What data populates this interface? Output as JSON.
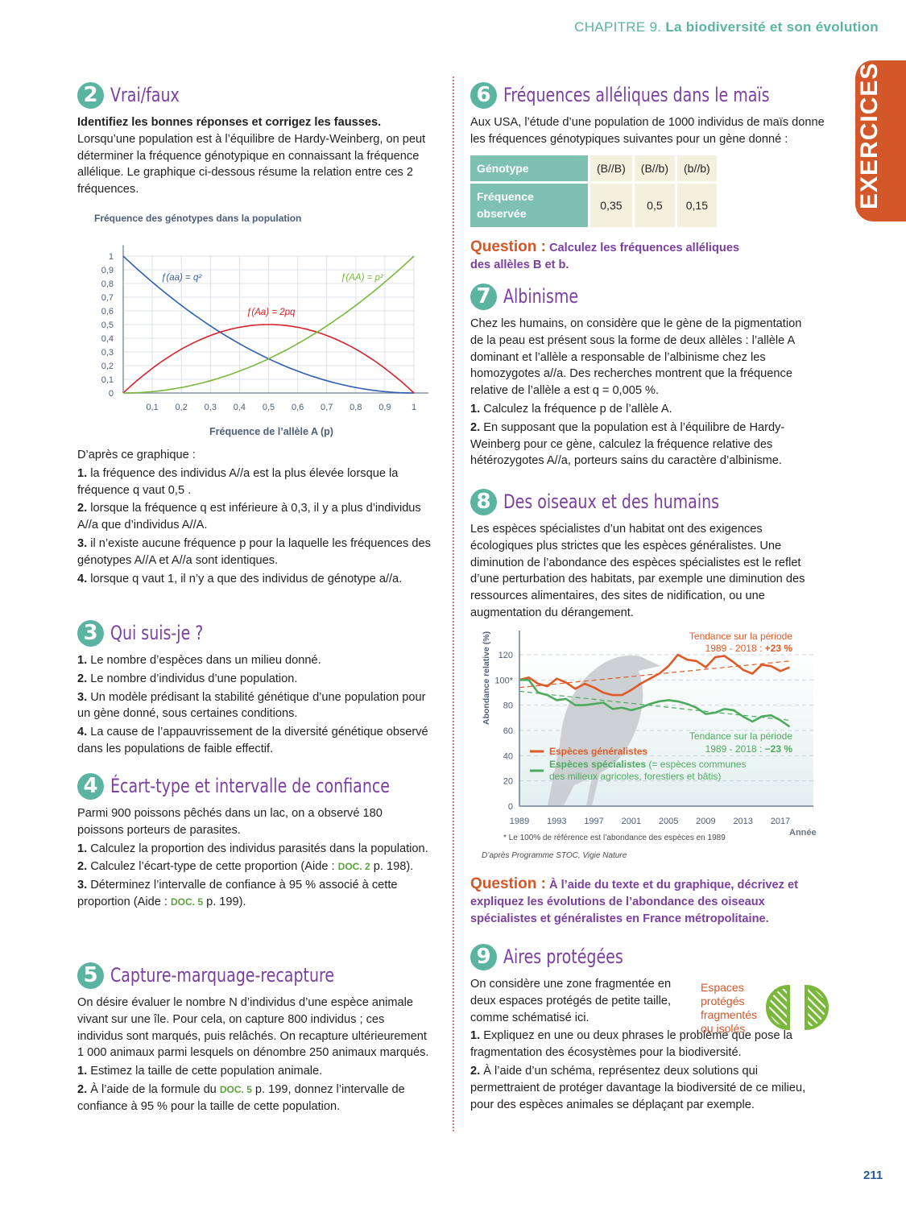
{
  "header": {
    "chapter": "CHAPITRE 9.",
    "title": "La biodiversité et son évolution"
  },
  "tab": "EXERCICES",
  "page_number": "211",
  "ex2": {
    "num": "2",
    "title": "Vrai/faux",
    "intro": "Identifiez les bonnes réponses et corrigez les fausses.",
    "text": "Lorsqu’une population est à l’équilibre de Hardy-Weinberg, on peut déterminer la fréquence génotypique en connaissant la fréquence allélique. Le graphique ci-dessous résume la relation entre ces 2 fréquences.",
    "after": "D’après ce graphique :",
    "items": [
      {
        "n": "1.",
        "t": "la fréquence des individus A//a est la plus élevée lorsque la fréquence q vaut 0,5 ."
      },
      {
        "n": "2.",
        "t": "lorsque la fréquence q est inférieure à 0,3, il y a plus d’individus A//a que d’individus A//A."
      },
      {
        "n": "3.",
        "t": "il n’existe aucune fréquence p pour la laquelle les fréquences des génotypes A//A et A//a sont identiques."
      },
      {
        "n": "4.",
        "t": "lorsque q vaut 1, il n’y a que des individus de génotype a//a."
      }
    ]
  },
  "chart_data": [
    {
      "type": "line",
      "ylabel": "Fréquence des génotypes dans la population",
      "xlabel": "Fréquence de l’allèle A (p)",
      "xlim": [
        0,
        1
      ],
      "ylim": [
        0,
        1
      ],
      "grid": true,
      "x_ticks": [
        "0,1",
        "0,2",
        "0,3",
        "0,4",
        "0,5",
        "0,6",
        "0,7",
        "0,8",
        "0,9",
        "1"
      ],
      "y_ticks": [
        "0",
        "0,1",
        "0,2",
        "0,3",
        "0,4",
        "0,5",
        "0,6",
        "0,7",
        "0,8",
        "0,9",
        "1"
      ],
      "series": [
        {
          "name": "ƒ(aa) = q²",
          "formula": "(1-p)^2",
          "color": "#2f5fb3"
        },
        {
          "name": "ƒ(Aa) = 2pq",
          "formula": "2p(1-p)",
          "color": "#d8232a"
        },
        {
          "name": "ƒ(AA) = p²",
          "formula": "p^2",
          "color": "#7ab83c"
        }
      ]
    },
    {
      "type": "line",
      "ylabel": "Abondance relative (%)",
      "xlabel": "Année",
      "xlim": [
        1989,
        2018
      ],
      "ylim": [
        0,
        130
      ],
      "x_ticks": [
        "1989",
        "1993",
        "1997",
        "2001",
        "2005",
        "2009",
        "2013",
        "2017"
      ],
      "y_ticks": [
        "0",
        "20",
        "40",
        "60",
        "80",
        "100*",
        "120"
      ],
      "x": [
        1989,
        1990,
        1991,
        1992,
        1993,
        1994,
        1995,
        1996,
        1997,
        1998,
        1999,
        2000,
        2001,
        2002,
        2003,
        2004,
        2005,
        2006,
        2007,
        2008,
        2009,
        2010,
        2011,
        2012,
        2013,
        2014,
        2015,
        2016,
        2017,
        2018
      ],
      "series": [
        {
          "name": "Espèces généralistes",
          "color": "#e05a28",
          "values": [
            100,
            102,
            97,
            95,
            101,
            98,
            93,
            97,
            94,
            90,
            88,
            88,
            92,
            97,
            101,
            105,
            111,
            120,
            116,
            115,
            110,
            118,
            119,
            114,
            108,
            105,
            112,
            111,
            107,
            110
          ],
          "trend": [
            94,
            115
          ],
          "trend_label": "Tendance sur la période",
          "trend_period": "1989 - 2018 :",
          "trend_value": "+23 %"
        },
        {
          "name": "Espèces spécialistes",
          "name_note": "(= espèces communes des milieux agricoles, forestiers et bâtis)",
          "color": "#4eaa5f",
          "values": [
            100,
            100,
            90,
            88,
            84,
            85,
            80,
            80,
            81,
            82,
            77,
            78,
            76,
            78,
            81,
            83,
            84,
            83,
            81,
            78,
            73,
            74,
            77,
            76,
            71,
            67,
            71,
            72,
            68,
            63
          ],
          "trend": [
            91,
            68
          ],
          "trend_label": "Tendance sur la période",
          "trend_period": "1989 - 2018 :",
          "trend_value": "−23 %"
        }
      ],
      "footnote": "* Le 100% de référence est l’abondance des espèces en 1989",
      "source": "D’après Programme STOC, Vigie Nature"
    }
  ],
  "ex3": {
    "num": "3",
    "title": "Qui suis-je ?",
    "items": [
      {
        "n": "1.",
        "t": "Le nombre d’espèces dans un milieu donné."
      },
      {
        "n": "2.",
        "t": "Le nombre d’individus d’une population."
      },
      {
        "n": "3.",
        "t": "Un modèle prédisant la stabilité génétique d’une population pour un gène donné, sous certaines conditions."
      },
      {
        "n": "4.",
        "t": "La cause de l’appauvrissement de la diversité génétique observé dans les populations de faible effectif."
      }
    ]
  },
  "ex4": {
    "num": "4",
    "title": "Écart-type et intervalle de confiance",
    "text": "Parmi 900 poissons pêchés dans un lac, on a observé 180 poissons porteurs de parasites.",
    "items": [
      {
        "n": "1.",
        "t": "Calculez la proportion des individus parasités dans la population.",
        "doc": "",
        "after": ""
      },
      {
        "n": "2.",
        "t": "Calculez l’écart-type de cette proportion (Aide : ",
        "doc": "DOC. 2",
        "after": " p. 198)."
      },
      {
        "n": "3.",
        "t": "Déterminez l’intervalle de confiance à 95 % associé à cette proportion (Aide : ",
        "doc": "DOC. 5",
        "after": " p. 199)."
      }
    ]
  },
  "ex5": {
    "num": "5",
    "title": "Capture-marquage-recapture",
    "text": "On désire évaluer le nombre N d’individus d’une espèce animale vivant sur une île. Pour cela, on capture 800 individus ; ces individus sont marqués, puis relâchés. On recapture ultérieurement 1 000 animaux parmi lesquels on dénombre 250 animaux marqués.",
    "items": [
      {
        "n": "1.",
        "t": "Estimez la taille de cette population animale.",
        "doc": "",
        "after": ""
      },
      {
        "n": "2.",
        "t": "À l’aide de la formule du ",
        "doc": "DOC. 5",
        "after": " p. 199, donnez l’intervalle de confiance à 95 % pour la taille de cette population."
      }
    ]
  },
  "ex6": {
    "num": "6",
    "title": "Fréquences alléliques dans le maïs",
    "text": "Aux USA, l’étude d’une population de 1000 individus de maïs donne les fréquences génotypiques suivantes pour un gène donné :",
    "table": {
      "row_headers": [
        "Génotype",
        "Fréquence observée"
      ],
      "genotypes": [
        "(B//B)",
        "(B//b)",
        "(b//b)"
      ],
      "frequencies": [
        "0,35",
        "0,5",
        "0,15"
      ]
    },
    "question_label": "Question :",
    "question": "Calculez les fréquences alléliques des allèles B et b."
  },
  "ex7": {
    "num": "7",
    "title": "Albinisme",
    "text": "Chez les humains, on considère que le gène de la pigmentation de la peau est présent sous la forme de deux allèles : l’allèle A dominant et l’allèle a responsable de l’albinisme chez les homozygotes a//a. Des recherches montrent que la fréquence relative de l’allèle a est q = 0,005 %.",
    "items": [
      {
        "n": "1.",
        "t": "Calculez la fréquence p de l’allèle A."
      },
      {
        "n": "2.",
        "t": "En supposant que la population est à l’équilibre de Hardy-Weinberg pour ce gène, calculez la fréquence relative des hétérozygotes A//a, porteurs sains du caractère d’albinisme."
      }
    ]
  },
  "ex8": {
    "num": "8",
    "title": "Des oiseaux et des humains",
    "text": "Les espèces spécialistes d’un habitat ont des exigences écologiques plus strictes que les espèces généralistes. Une diminution de l’abondance des espèces spécialistes est le reflet d’une perturbation des habitats, par exemple une diminution des ressources alimentaires, des sites de nidification, ou une augmentation du dérangement.",
    "question_label": "Question :",
    "question": "À l’aide du texte et du graphique, décrivez et expliquez les évolutions de l’abondance des oiseaux spécialistes et généralistes en France métropolitaine."
  },
  "ex9": {
    "num": "9",
    "title": "Aires protégées",
    "text": "On considère une zone fragmentée en deux espaces protégés de petite taille, comme schématisé ici.",
    "figure_label": "Espaces protégés fragmentés ou isolés",
    "items": [
      {
        "n": "1.",
        "t": "Expliquez en une ou deux phrases le problème que pose la fragmentation des écosystèmes pour la biodiversité."
      },
      {
        "n": "2.",
        "t": "À l’aide d’un schéma, représentez deux solutions qui permettraient de protéger davantage la biodiversité de ce milieu, pour des espèces animales se déplaçant par exemple."
      }
    ]
  },
  "colors": {
    "teal": "#5ab4a1",
    "purple": "#7b3fa0",
    "orange": "#d4572a",
    "doc_green": "#5aa33c"
  }
}
